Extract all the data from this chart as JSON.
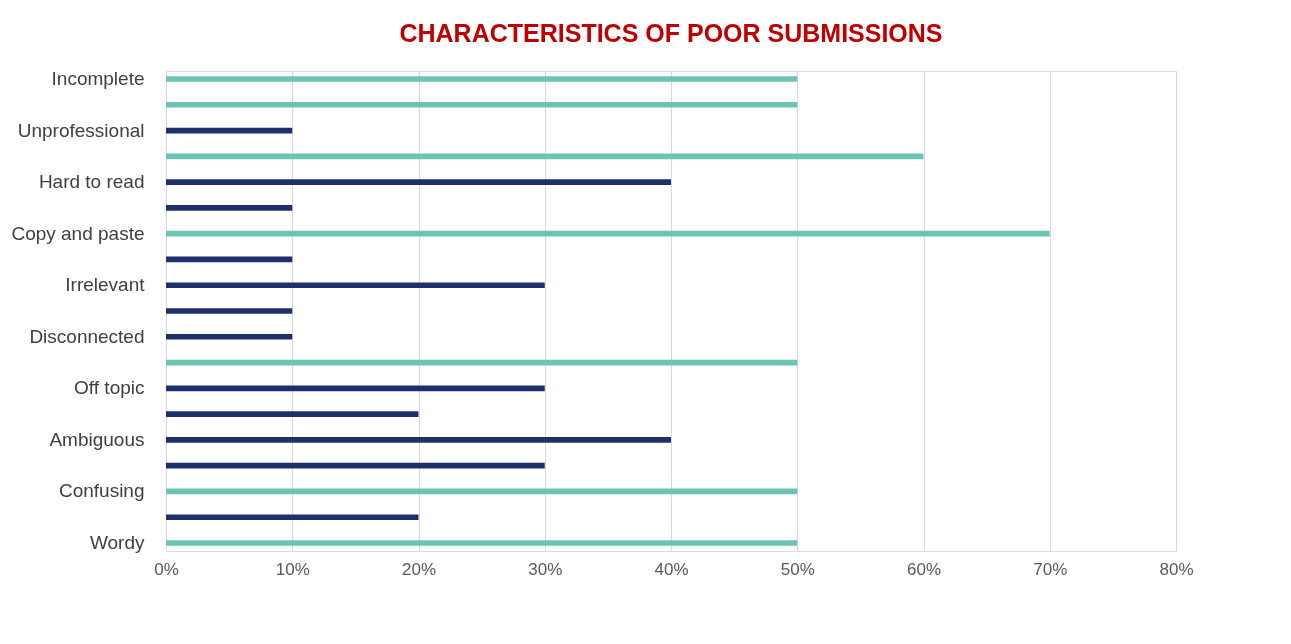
{
  "chart_data": {
    "type": "bar",
    "orientation": "horizontal",
    "title": "CHARACTERISTICS OF POOR SUBMISSIONS",
    "categories": [
      "Incomplete",
      null,
      "Unprofessional",
      null,
      "Hard to read",
      null,
      "Copy and paste",
      null,
      "Irrelevant",
      null,
      "Disconnected",
      null,
      "Off topic",
      null,
      "Ambiguous",
      null,
      "Confusing",
      null,
      "Wordy"
    ],
    "values": [
      50,
      50,
      10,
      60,
      40,
      10,
      70,
      10,
      30,
      10,
      10,
      50,
      30,
      20,
      40,
      30,
      50,
      20,
      50
    ],
    "colors": [
      "#6cc4b4",
      "#6cc4b4",
      "#1f2f6e",
      "#6cc4b4",
      "#1f2f6e",
      "#1f2f6e",
      "#6cc4b4",
      "#1f2f6e",
      "#1f2f6e",
      "#1f2f6e",
      "#1f2f6e",
      "#6cc4b4",
      "#1f2f6e",
      "#1f2f6e",
      "#1f2f6e",
      "#1f2f6e",
      "#6cc4b4",
      "#1f2f6e",
      "#6cc4b4"
    ],
    "xlim": [
      0,
      80
    ],
    "xticks": [
      {
        "value": 0,
        "label": "0%"
      },
      {
        "value": 10,
        "label": "10%"
      },
      {
        "value": 20,
        "label": "20%"
      },
      {
        "value": 30,
        "label": "30%"
      },
      {
        "value": 40,
        "label": "40%"
      },
      {
        "value": 50,
        "label": "50%"
      },
      {
        "value": 60,
        "label": "60%"
      },
      {
        "value": 70,
        "label": "70%"
      },
      {
        "value": 80,
        "label": "80%"
      }
    ],
    "grid": "x"
  }
}
